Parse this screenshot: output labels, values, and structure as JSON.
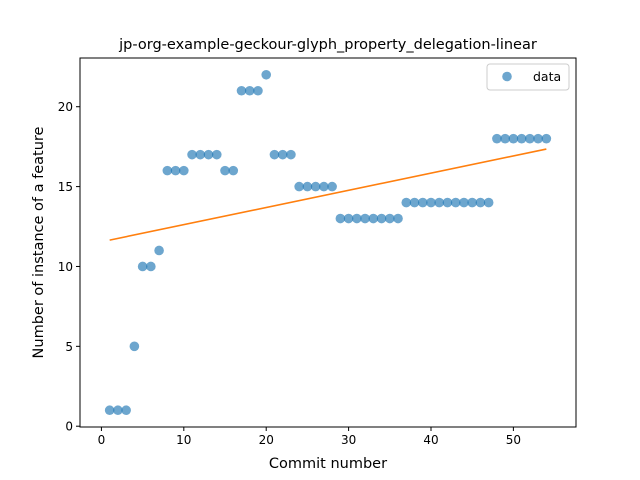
{
  "chart_data": {
    "type": "scatter",
    "title": "jp-org-example-geckour-glyph_property_delegation-linear",
    "xlabel": "Commit number",
    "ylabel": "Number of instance of a feature",
    "xlim": [
      -2.6,
      57.6
    ],
    "ylim": [
      -0.05,
      23.05
    ],
    "xticks": [
      0,
      10,
      20,
      30,
      40,
      50
    ],
    "yticks": [
      0,
      5,
      10,
      15,
      20
    ],
    "grid": false,
    "legend_position": "top-right",
    "series": [
      {
        "name": "data",
        "kind": "scatter",
        "color": "#1f77b4",
        "x": [
          1,
          2,
          3,
          4,
          5,
          6,
          7,
          8,
          9,
          10,
          11,
          12,
          13,
          14,
          15,
          16,
          17,
          18,
          19,
          20,
          21,
          22,
          23,
          24,
          25,
          26,
          27,
          28,
          29,
          30,
          31,
          32,
          33,
          34,
          35,
          36,
          37,
          38,
          39,
          40,
          41,
          42,
          43,
          44,
          45,
          46,
          47,
          48,
          49,
          50,
          51,
          52,
          53,
          54
        ],
        "y": [
          1,
          1,
          1,
          5,
          10,
          10,
          11,
          16,
          16,
          16,
          17,
          17,
          17,
          17,
          16,
          16,
          21,
          21,
          21,
          22,
          17,
          17,
          17,
          15,
          15,
          15,
          15,
          15,
          13,
          13,
          13,
          13,
          13,
          13,
          13,
          13,
          14,
          14,
          14,
          14,
          14,
          14,
          14,
          14,
          14,
          14,
          14,
          18,
          18,
          18,
          18,
          18,
          18,
          18
        ]
      },
      {
        "kind": "line",
        "color": "#ff7f0e",
        "x": [
          1,
          54
        ],
        "y": [
          11.65,
          17.35
        ]
      }
    ]
  }
}
